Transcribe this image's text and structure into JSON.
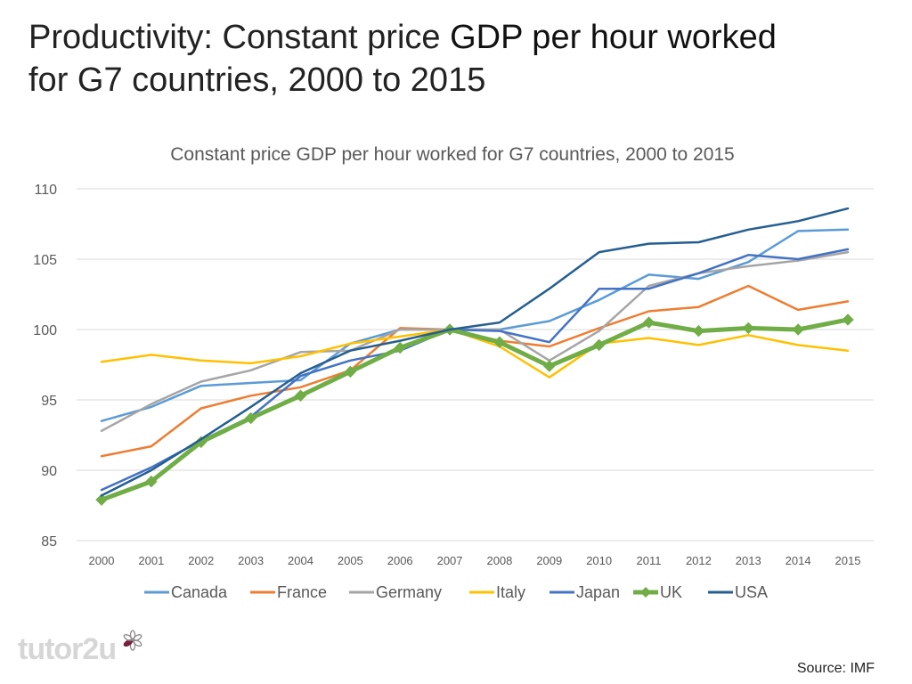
{
  "slide": {
    "title_part1": "Productivity: Constant price ",
    "title_emph": "GDP per hour worked",
    "title_part2": "for G7 countries, 2000 to 2015",
    "source": "Source: IMF",
    "logo_text": "tutor2u"
  },
  "chart_data": {
    "type": "line",
    "title": "Constant price GDP per hour worked for G7 countries, 2000 to 2015",
    "xlabel": "",
    "ylabel": "",
    "ylim": [
      85,
      110
    ],
    "yticks": [
      85,
      90,
      95,
      100,
      105,
      110
    ],
    "grid": true,
    "legend_position": "bottom",
    "categories": [
      "2000",
      "2001",
      "2002",
      "2003",
      "2004",
      "2005",
      "2006",
      "2007",
      "2008",
      "2009",
      "2010",
      "2011",
      "2012",
      "2013",
      "2014",
      "2015"
    ],
    "series": [
      {
        "name": "Canada",
        "color": "#5b9bd5",
        "width": 2.5,
        "markers": false,
        "values": [
          93.5,
          94.5,
          96.0,
          96.2,
          96.4,
          99.0,
          100.0,
          100.0,
          100.0,
          100.6,
          102.1,
          103.9,
          103.6,
          104.8,
          107.0,
          107.1
        ]
      },
      {
        "name": "France",
        "color": "#ed7d31",
        "width": 2.5,
        "markers": false,
        "values": [
          91.0,
          91.7,
          94.4,
          95.3,
          95.9,
          97.1,
          100.1,
          100.0,
          99.2,
          98.8,
          100.1,
          101.3,
          101.6,
          103.1,
          101.4,
          102.0
        ]
      },
      {
        "name": "Germany",
        "color": "#a5a5a5",
        "width": 2.5,
        "markers": false,
        "values": [
          92.8,
          94.7,
          96.3,
          97.1,
          98.4,
          98.5,
          100.0,
          100.0,
          100.0,
          97.8,
          99.9,
          103.1,
          104.0,
          104.5,
          104.9,
          105.5
        ]
      },
      {
        "name": "Italy",
        "color": "#ffc000",
        "width": 2.5,
        "markers": false,
        "values": [
          97.7,
          98.2,
          97.8,
          97.6,
          98.1,
          99.0,
          99.5,
          100.0,
          98.8,
          96.6,
          99.0,
          99.4,
          98.9,
          99.6,
          98.9,
          98.5
        ]
      },
      {
        "name": "Japan",
        "color": "#4472c4",
        "width": 2.5,
        "markers": false,
        "values": [
          88.6,
          90.2,
          92.1,
          93.8,
          96.7,
          97.8,
          98.5,
          100.0,
          99.9,
          99.1,
          102.9,
          102.9,
          104.0,
          105.3,
          105.0,
          105.7
        ]
      },
      {
        "name": "UK",
        "color": "#70ad47",
        "width": 5,
        "markers": true,
        "values": [
          87.9,
          89.2,
          92.0,
          93.7,
          95.3,
          97.0,
          98.7,
          100.0,
          99.1,
          97.4,
          98.9,
          100.5,
          99.9,
          100.1,
          100.0,
          100.7
        ]
      },
      {
        "name": "USA",
        "color": "#255e91",
        "width": 2.5,
        "markers": false,
        "values": [
          88.2,
          90.0,
          92.2,
          94.5,
          96.9,
          98.5,
          99.2,
          100.0,
          100.5,
          102.9,
          105.5,
          106.1,
          106.2,
          107.1,
          107.7,
          108.6
        ]
      }
    ]
  }
}
